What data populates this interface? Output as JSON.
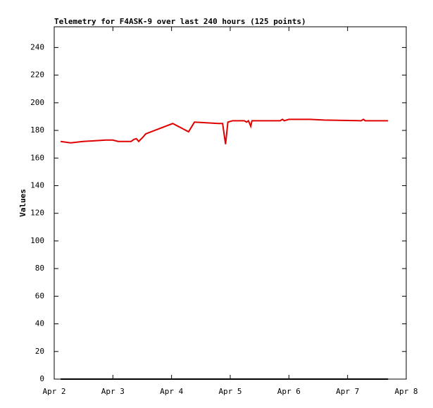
{
  "chart_data": {
    "type": "line",
    "title": "Telemetry for F4ASK-9 over last 240 hours (125 points)",
    "y_label": "Values",
    "x": [
      2.11,
      2.28,
      2.49,
      2.88,
      3.0,
      3.09,
      3.31,
      3.36,
      3.4,
      3.44,
      3.51,
      3.56,
      4.02,
      4.29,
      4.39,
      4.8,
      4.83,
      4.87,
      4.92,
      4.96,
      5.04,
      5.24,
      5.28,
      5.31,
      5.35,
      5.37,
      5.85,
      5.89,
      5.92,
      6.0,
      6.36,
      6.6,
      7.23,
      7.27,
      7.3,
      7.69
    ],
    "series": [
      {
        "color": "#e00000",
        "values": [
          172,
          171,
          172,
          173,
          173,
          172,
          172,
          173.5,
          174,
          172,
          175,
          177.5,
          185,
          179,
          186,
          185,
          185,
          185,
          170,
          186,
          187,
          187,
          186,
          187,
          183,
          187,
          187,
          188,
          187,
          188,
          188,
          187.5,
          187,
          188,
          187,
          187
        ]
      },
      {
        "color": "#000000",
        "values": [
          0,
          0,
          0,
          0,
          0,
          0,
          0,
          0,
          0,
          0,
          0,
          0,
          0,
          0,
          0,
          0,
          0,
          0,
          0,
          0,
          0,
          0,
          0,
          0,
          0,
          0,
          0,
          0,
          0,
          0,
          0,
          0,
          0,
          0,
          0,
          0
        ]
      }
    ],
    "xlim": [
      2,
      8
    ],
    "xticks": [
      {
        "value": 2,
        "label": "Apr 2"
      },
      {
        "value": 3,
        "label": "Apr 3"
      },
      {
        "value": 4,
        "label": "Apr 4"
      },
      {
        "value": 5,
        "label": "Apr 5"
      },
      {
        "value": 6,
        "label": "Apr 6"
      },
      {
        "value": 7,
        "label": "Apr 7"
      },
      {
        "value": 8,
        "label": "Apr 8"
      }
    ],
    "ylim": [
      0,
      255
    ],
    "yticks": [
      0,
      20,
      40,
      60,
      80,
      100,
      120,
      140,
      160,
      180,
      200,
      220,
      240
    ]
  }
}
